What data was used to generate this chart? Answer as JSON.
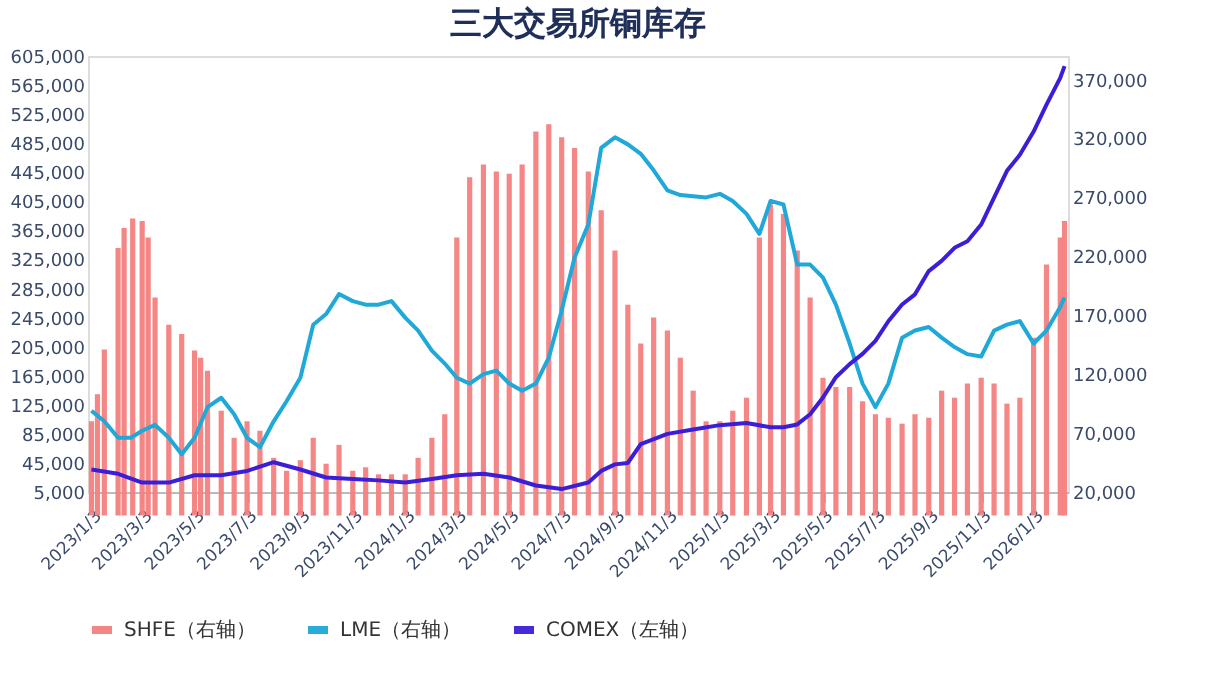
{
  "chart_data": {
    "type": "bar",
    "title": "三大交易所铜库存",
    "legend": "bottom",
    "grid": false,
    "xlim": [
      "2022-12-30",
      "2026-02-12"
    ],
    "xticks": [
      {
        "value": "2023-01-03",
        "label": "2023/1/3"
      },
      {
        "value": "2023-03-03",
        "label": "2023/3/3"
      },
      {
        "value": "2023-05-03",
        "label": "2023/5/3"
      },
      {
        "value": "2023-07-03",
        "label": "2023/7/3"
      },
      {
        "value": "2023-09-03",
        "label": "2023/9/3"
      },
      {
        "value": "2023-11-03",
        "label": "2023/11/3"
      },
      {
        "value": "2024-01-03",
        "label": "2024/1/3"
      },
      {
        "value": "2024-03-03",
        "label": "2024/3/3"
      },
      {
        "value": "2024-05-03",
        "label": "2024/5/3"
      },
      {
        "value": "2024-07-03",
        "label": "2024/7/3"
      },
      {
        "value": "2024-09-03",
        "label": "2024/9/3"
      },
      {
        "value": "2024-11-03",
        "label": "2024/11/3"
      },
      {
        "value": "2025-01-03",
        "label": "2025/1/3"
      },
      {
        "value": "2025-03-03",
        "label": "2025/3/3"
      },
      {
        "value": "2025-05-03",
        "label": "2025/5/3"
      },
      {
        "value": "2025-07-03",
        "label": "2025/7/3"
      },
      {
        "value": "2025-09-03",
        "label": "2025/9/3"
      },
      {
        "value": "2025-11-03",
        "label": "2025/11/3"
      },
      {
        "value": "2026-01-03",
        "label": "2026/1/3"
      }
    ],
    "ylim": [
      5000,
      605000
    ],
    "yticks": [
      {
        "value": 5000,
        "label": "5,000"
      },
      {
        "value": 45000,
        "label": "45,000"
      },
      {
        "value": 85000,
        "label": "85,000"
      },
      {
        "value": 125000,
        "label": "125,000"
      },
      {
        "value": 165000,
        "label": "165,000"
      },
      {
        "value": 205000,
        "label": "205,000"
      },
      {
        "value": 245000,
        "label": "245,000"
      },
      {
        "value": 285000,
        "label": "285,000"
      },
      {
        "value": 325000,
        "label": "325,000"
      },
      {
        "value": 365000,
        "label": "365,000"
      },
      {
        "value": 405000,
        "label": "405,000"
      },
      {
        "value": 445000,
        "label": "445,000"
      },
      {
        "value": 485000,
        "label": "485,000"
      },
      {
        "value": 525000,
        "label": "525,000"
      },
      {
        "value": 565000,
        "label": "565,000"
      },
      {
        "value": 605000,
        "label": "605,000"
      }
    ],
    "y2lim": [
      20000,
      390000
    ],
    "y2ticks": [
      {
        "value": 20000,
        "label": "20,000"
      },
      {
        "value": 70000,
        "label": "70,000"
      },
      {
        "value": 120000,
        "label": "120,000"
      },
      {
        "value": 170000,
        "label": "170,000"
      },
      {
        "value": 220000,
        "label": "220,000"
      },
      {
        "value": 270000,
        "label": "270,000"
      },
      {
        "value": 320000,
        "label": "320,000"
      },
      {
        "value": 370000,
        "label": "370,000"
      }
    ],
    "series": [
      {
        "name": "SHFE（右轴）",
        "axis": "y2",
        "color": "#f47f7f",
        "x": [
          "2023-01-03",
          "2023-01-10",
          "2023-01-18",
          "2023-02-03",
          "2023-02-10",
          "2023-02-20",
          "2023-03-03",
          "2023-03-10",
          "2023-03-18",
          "2023-04-03",
          "2023-04-18",
          "2023-05-03",
          "2023-05-10",
          "2023-05-18",
          "2023-06-03",
          "2023-06-18",
          "2023-07-03",
          "2023-07-18",
          "2023-08-03",
          "2023-08-18",
          "2023-09-03",
          "2023-09-18",
          "2023-10-03",
          "2023-10-18",
          "2023-11-03",
          "2023-11-18",
          "2023-12-03",
          "2023-12-18",
          "2024-01-03",
          "2024-01-18",
          "2024-02-03",
          "2024-02-18",
          "2024-03-03",
          "2024-03-18",
          "2024-04-03",
          "2024-04-18",
          "2024-05-03",
          "2024-05-18",
          "2024-06-03",
          "2024-06-18",
          "2024-07-03",
          "2024-07-18",
          "2024-08-03",
          "2024-08-18",
          "2024-09-03",
          "2024-09-18",
          "2024-10-03",
          "2024-10-18",
          "2024-11-03",
          "2024-11-18",
          "2024-12-03",
          "2024-12-18",
          "2025-01-03",
          "2025-01-18",
          "2025-02-03",
          "2025-02-18",
          "2025-03-03",
          "2025-03-18",
          "2025-04-03",
          "2025-04-18",
          "2025-05-03",
          "2025-05-18",
          "2025-06-03",
          "2025-06-18",
          "2025-07-03",
          "2025-07-18",
          "2025-08-03",
          "2025-08-18",
          "2025-09-03",
          "2025-09-18",
          "2025-10-03",
          "2025-10-18",
          "2025-11-03",
          "2025-11-18",
          "2025-12-03",
          "2025-12-18",
          "2026-01-03",
          "2026-01-18",
          "2026-02-03",
          "2026-02-08"
        ],
        "values": [
          80000,
          103000,
          141000,
          227000,
          244000,
          252000,
          250000,
          236000,
          185000,
          162000,
          154000,
          140000,
          134000,
          123000,
          89000,
          66000,
          80000,
          72000,
          49000,
          38000,
          47000,
          66000,
          44000,
          60000,
          38000,
          41000,
          35000,
          35000,
          35000,
          49000,
          66000,
          86000,
          236000,
          287000,
          298000,
          292000,
          290000,
          298000,
          326000,
          332000,
          321000,
          312000,
          292000,
          259000,
          225000,
          179000,
          146000,
          168000,
          157000,
          134000,
          106000,
          80000,
          80000,
          89000,
          100000,
          236000,
          264000,
          256000,
          225000,
          185000,
          117000,
          109000,
          109000,
          97000,
          86000,
          83000,
          78000,
          86000,
          83000,
          106000,
          100000,
          112000,
          117000,
          112000,
          95000,
          100000,
          151000,
          213000,
          236000,
          250000
        ]
      },
      {
        "name": "LME（右轴）",
        "type": "line",
        "axis": "y2",
        "color": "#1fa8d8",
        "x": [
          "2023-01-03",
          "2023-01-18",
          "2023-02-03",
          "2023-02-18",
          "2023-03-03",
          "2023-03-18",
          "2023-04-03",
          "2023-04-18",
          "2023-05-03",
          "2023-05-18",
          "2023-06-03",
          "2023-06-18",
          "2023-07-03",
          "2023-07-18",
          "2023-08-03",
          "2023-08-18",
          "2023-09-03",
          "2023-09-18",
          "2023-10-03",
          "2023-10-18",
          "2023-11-03",
          "2023-11-18",
          "2023-12-03",
          "2023-12-18",
          "2024-01-03",
          "2024-01-18",
          "2024-02-03",
          "2024-02-18",
          "2024-03-03",
          "2024-03-18",
          "2024-04-03",
          "2024-04-18",
          "2024-05-03",
          "2024-05-18",
          "2024-06-03",
          "2024-06-18",
          "2024-07-03",
          "2024-07-18",
          "2024-08-03",
          "2024-08-18",
          "2024-09-03",
          "2024-09-18",
          "2024-10-03",
          "2024-10-18",
          "2024-11-03",
          "2024-11-18",
          "2024-12-03",
          "2024-12-18",
          "2025-01-03",
          "2025-01-18",
          "2025-02-03",
          "2025-02-18",
          "2025-03-03",
          "2025-03-18",
          "2025-04-03",
          "2025-04-18",
          "2025-05-03",
          "2025-05-18",
          "2025-06-03",
          "2025-06-18",
          "2025-07-03",
          "2025-07-18",
          "2025-08-03",
          "2025-08-18",
          "2025-09-03",
          "2025-09-18",
          "2025-10-03",
          "2025-10-18",
          "2025-11-03",
          "2025-11-18",
          "2025-12-03",
          "2025-12-18",
          "2026-01-03",
          "2026-01-18",
          "2026-02-03",
          "2026-02-08"
        ],
        "values": [
          89000,
          80000,
          66000,
          66000,
          72000,
          77000,
          66000,
          52000,
          66000,
          92000,
          100000,
          86000,
          66000,
          58000,
          80000,
          97000,
          117000,
          162000,
          171000,
          188000,
          182000,
          179000,
          179000,
          182000,
          168000,
          157000,
          140000,
          129000,
          117000,
          112000,
          120000,
          123000,
          112000,
          106000,
          112000,
          134000,
          174000,
          219000,
          247000,
          312000,
          321000,
          315000,
          307000,
          293000,
          276000,
          272000,
          271000,
          270000,
          273000,
          267000,
          256000,
          239000,
          267000,
          264000,
          213000,
          213000,
          202000,
          179000,
          146000,
          112000,
          92000,
          112000,
          151000,
          157000,
          160000,
          151000,
          143000,
          137000,
          135000,
          157000,
          162000,
          165000,
          146000,
          157000,
          177000,
          185000
        ]
      },
      {
        "name": "COMEX（左轴）",
        "type": "line",
        "axis": "y",
        "color": "#3a1fd6",
        "x": [
          "2023-01-03",
          "2023-02-03",
          "2023-03-03",
          "2023-04-03",
          "2023-05-03",
          "2023-06-03",
          "2023-07-03",
          "2023-08-03",
          "2023-09-03",
          "2023-10-03",
          "2023-11-03",
          "2023-12-03",
          "2024-01-03",
          "2024-02-03",
          "2024-03-03",
          "2024-04-03",
          "2024-05-03",
          "2024-06-03",
          "2024-07-03",
          "2024-08-03",
          "2024-08-18",
          "2024-09-03",
          "2024-09-18",
          "2024-10-03",
          "2024-11-03",
          "2024-12-03",
          "2025-01-03",
          "2025-02-03",
          "2025-03-03",
          "2025-03-18",
          "2025-04-03",
          "2025-04-18",
          "2025-05-03",
          "2025-05-18",
          "2025-06-03",
          "2025-06-18",
          "2025-07-03",
          "2025-07-18",
          "2025-08-03",
          "2025-08-18",
          "2025-09-03",
          "2025-09-18",
          "2025-10-03",
          "2025-10-18",
          "2025-11-03",
          "2025-11-18",
          "2025-12-03",
          "2025-12-18",
          "2026-01-03",
          "2026-01-18",
          "2026-02-03",
          "2026-02-08"
        ],
        "values": [
          36000,
          30000,
          18000,
          18000,
          28000,
          28000,
          34000,
          46000,
          36000,
          25000,
          23000,
          21000,
          18000,
          23000,
          28000,
          30000,
          25000,
          14000,
          9000,
          18000,
          34000,
          43000,
          45000,
          71000,
          85000,
          91000,
          97000,
          100000,
          94000,
          94000,
          98000,
          112000,
          135000,
          163000,
          181000,
          195000,
          213000,
          240000,
          263000,
          277000,
          309000,
          323000,
          341000,
          350000,
          373000,
          410000,
          447000,
          469000,
          501000,
          538000,
          575000,
          591000
        ]
      }
    ]
  }
}
